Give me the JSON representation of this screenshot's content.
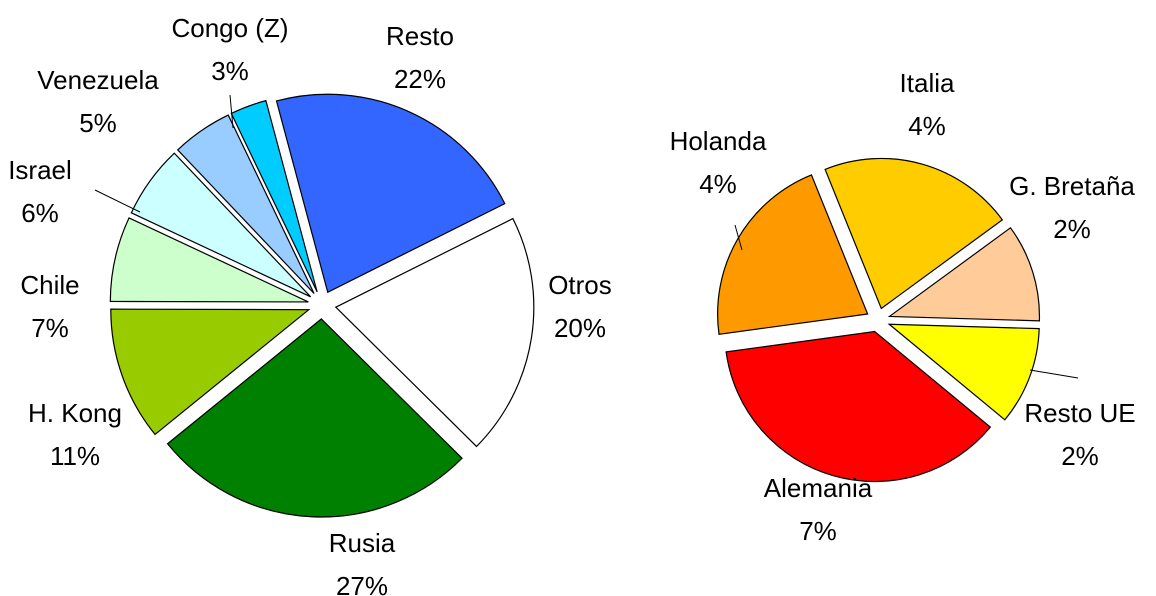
{
  "chart_data": [
    {
      "type": "pie",
      "categories": [
        "Resto",
        "Otros",
        "Rusia",
        "H. Kong",
        "Chile",
        "Israel",
        "Venezuela",
        "Congo (Z)"
      ],
      "values": [
        22,
        20,
        27,
        11,
        7,
        6,
        5,
        3
      ],
      "value_labels": [
        "22%",
        "20%",
        "27%",
        "11%",
        "7%",
        "6%",
        "5%",
        "3%"
      ],
      "colors": [
        "#3366ff",
        "#ffffff",
        "#008000",
        "#99cc00",
        "#ccffcc",
        "#ccffff",
        "#99ccff",
        "#00ccff"
      ]
    },
    {
      "type": "pie",
      "categories": [
        "Italia",
        "G. Bretaña",
        "Resto UE",
        "Alemania",
        "Holanda"
      ],
      "values": [
        4,
        2,
        2,
        7,
        4
      ],
      "value_labels": [
        "4%",
        "2%",
        "2%",
        "7%",
        "4%"
      ],
      "colors": [
        "#ffcc00",
        "#ffcc99",
        "#ffff00",
        "#ff0000",
        "#ff9900"
      ]
    }
  ]
}
